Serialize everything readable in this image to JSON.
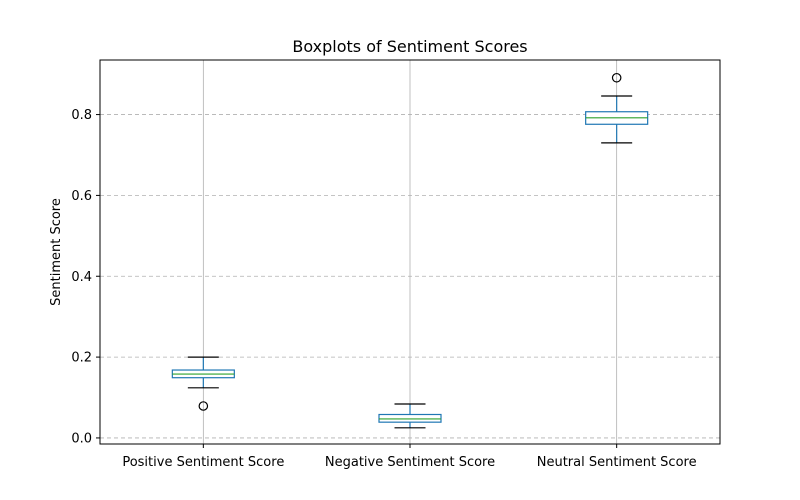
{
  "chart_data": {
    "type": "box",
    "title": "Boxplots of Sentiment Scores",
    "xlabel": "",
    "ylabel": "Sentiment Score",
    "ylim": [
      -0.015,
      0.935
    ],
    "yticks": [
      0.0,
      0.2,
      0.4,
      0.6,
      0.8
    ],
    "ytick_labels": [
      "0.0",
      "0.2",
      "0.4",
      "0.6",
      "0.8"
    ],
    "grid": {
      "x": true,
      "y": true,
      "y_style": "dashed"
    },
    "colors": {
      "box": "#1f77b4",
      "median": "#2ca02c",
      "whisker": "#1f77b4",
      "cap": "#000000",
      "flier": "#000000",
      "grid": "#b0b0b0"
    },
    "categories": [
      "Positive Sentiment Score",
      "Negative Sentiment Score",
      "Neutral Sentiment Score"
    ],
    "boxes": [
      {
        "label": "Positive Sentiment Score",
        "whisker_low": 0.124,
        "q1": 0.149,
        "median": 0.158,
        "q3": 0.168,
        "whisker_high": 0.2,
        "outliers": [
          0.079
        ]
      },
      {
        "label": "Negative Sentiment Score",
        "whisker_low": 0.025,
        "q1": 0.039,
        "median": 0.047,
        "q3": 0.058,
        "whisker_high": 0.084,
        "outliers": []
      },
      {
        "label": "Neutral Sentiment Score",
        "whisker_low": 0.73,
        "q1": 0.776,
        "median": 0.792,
        "q3": 0.807,
        "whisker_high": 0.846,
        "outliers": [
          0.891
        ]
      }
    ]
  }
}
